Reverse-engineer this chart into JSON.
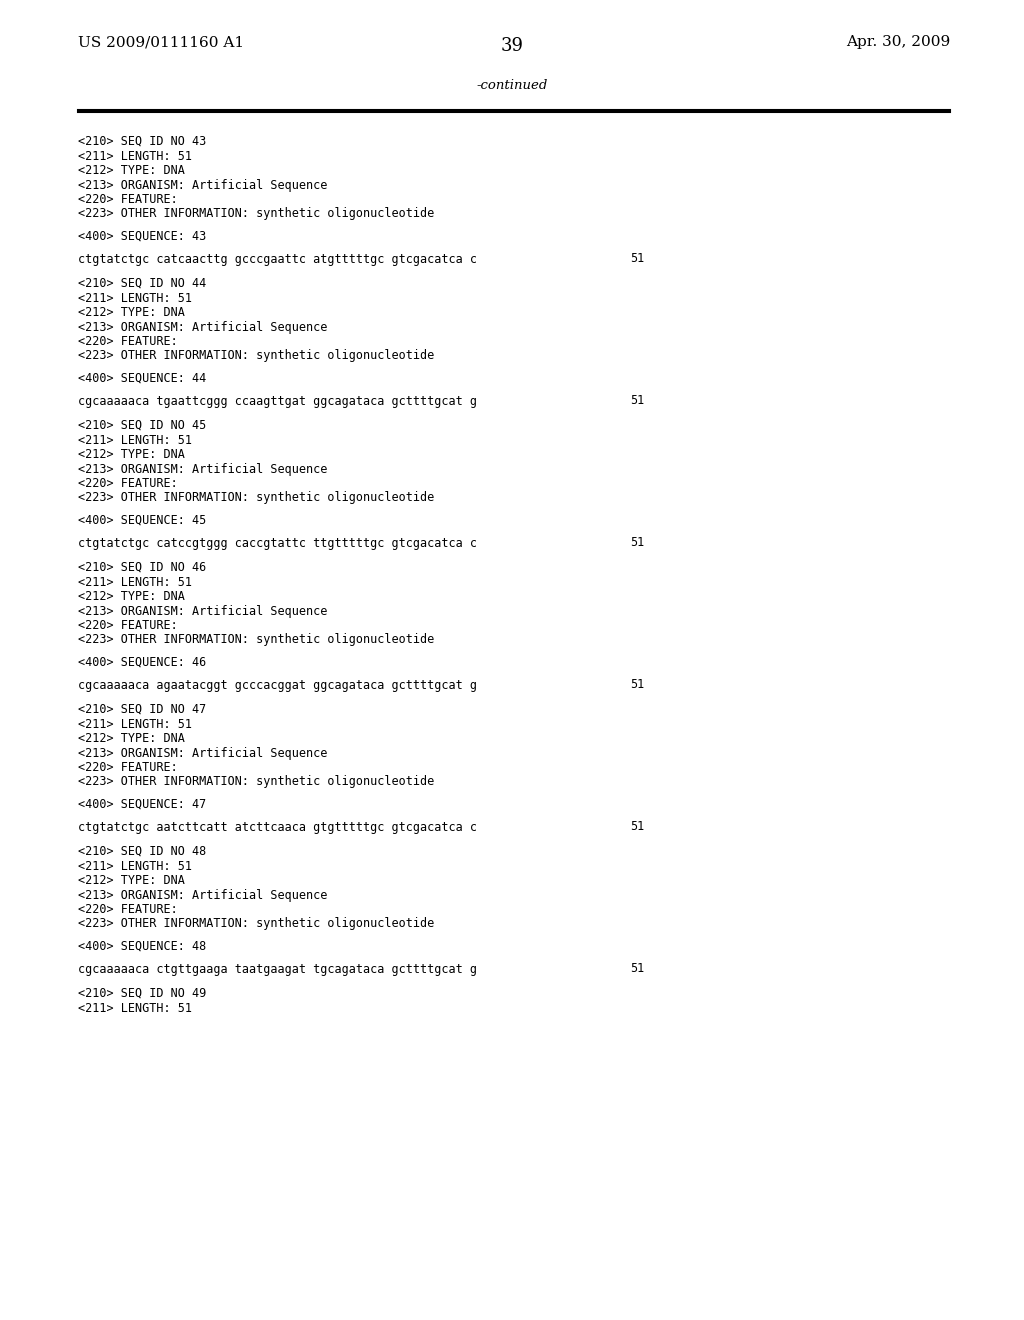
{
  "bg_color": "#ffffff",
  "header_left": "US 2009/0111160 A1",
  "header_right": "Apr. 30, 2009",
  "page_number": "39",
  "continued_label": "-continued",
  "entries": [
    {
      "meta": [
        "<210> SEQ ID NO 43",
        "<211> LENGTH: 51",
        "<212> TYPE: DNA",
        "<213> ORGANISM: Artificial Sequence",
        "<220> FEATURE:",
        "<223> OTHER INFORMATION: synthetic oligonucleotide"
      ],
      "sequence_label": "<400> SEQUENCE: 43",
      "sequence": "ctgtatctgc catcaacttg gcccgaattc atgtttttgc gtcgacatca c",
      "seq_num": "51"
    },
    {
      "meta": [
        "<210> SEQ ID NO 44",
        "<211> LENGTH: 51",
        "<212> TYPE: DNA",
        "<213> ORGANISM: Artificial Sequence",
        "<220> FEATURE:",
        "<223> OTHER INFORMATION: synthetic oligonucleotide"
      ],
      "sequence_label": "<400> SEQUENCE: 44",
      "sequence": "cgcaaaaaca tgaattcggg ccaagttgat ggcagataca gcttttgcat g",
      "seq_num": "51"
    },
    {
      "meta": [
        "<210> SEQ ID NO 45",
        "<211> LENGTH: 51",
        "<212> TYPE: DNA",
        "<213> ORGANISM: Artificial Sequence",
        "<220> FEATURE:",
        "<223> OTHER INFORMATION: synthetic oligonucleotide"
      ],
      "sequence_label": "<400> SEQUENCE: 45",
      "sequence": "ctgtatctgc catccgtggg caccgtattc ttgtttttgc gtcgacatca c",
      "seq_num": "51"
    },
    {
      "meta": [
        "<210> SEQ ID NO 46",
        "<211> LENGTH: 51",
        "<212> TYPE: DNA",
        "<213> ORGANISM: Artificial Sequence",
        "<220> FEATURE:",
        "<223> OTHER INFORMATION: synthetic oligonucleotide"
      ],
      "sequence_label": "<400> SEQUENCE: 46",
      "sequence": "cgcaaaaaca agaatacggt gcccacggat ggcagataca gcttttgcat g",
      "seq_num": "51"
    },
    {
      "meta": [
        "<210> SEQ ID NO 47",
        "<211> LENGTH: 51",
        "<212> TYPE: DNA",
        "<213> ORGANISM: Artificial Sequence",
        "<220> FEATURE:",
        "<223> OTHER INFORMATION: synthetic oligonucleotide"
      ],
      "sequence_label": "<400> SEQUENCE: 47",
      "sequence": "ctgtatctgc aatcttcatt atcttcaaca gtgtttttgc gtcgacatca c",
      "seq_num": "51"
    },
    {
      "meta": [
        "<210> SEQ ID NO 48",
        "<211> LENGTH: 51",
        "<212> TYPE: DNA",
        "<213> ORGANISM: Artificial Sequence",
        "<220> FEATURE:",
        "<223> OTHER INFORMATION: synthetic oligonucleotide"
      ],
      "sequence_label": "<400> SEQUENCE: 48",
      "sequence": "cgcaaaaaca ctgttgaaga taatgaagat tgcagataca gcttttgcat g",
      "seq_num": "51"
    },
    {
      "meta": [
        "<210> SEQ ID NO 49",
        "<211> LENGTH: 51"
      ],
      "sequence_label": "",
      "sequence": "",
      "seq_num": ""
    }
  ],
  "mono_font_size": 8.5,
  "header_font_size": 11,
  "page_num_font_size": 13
}
